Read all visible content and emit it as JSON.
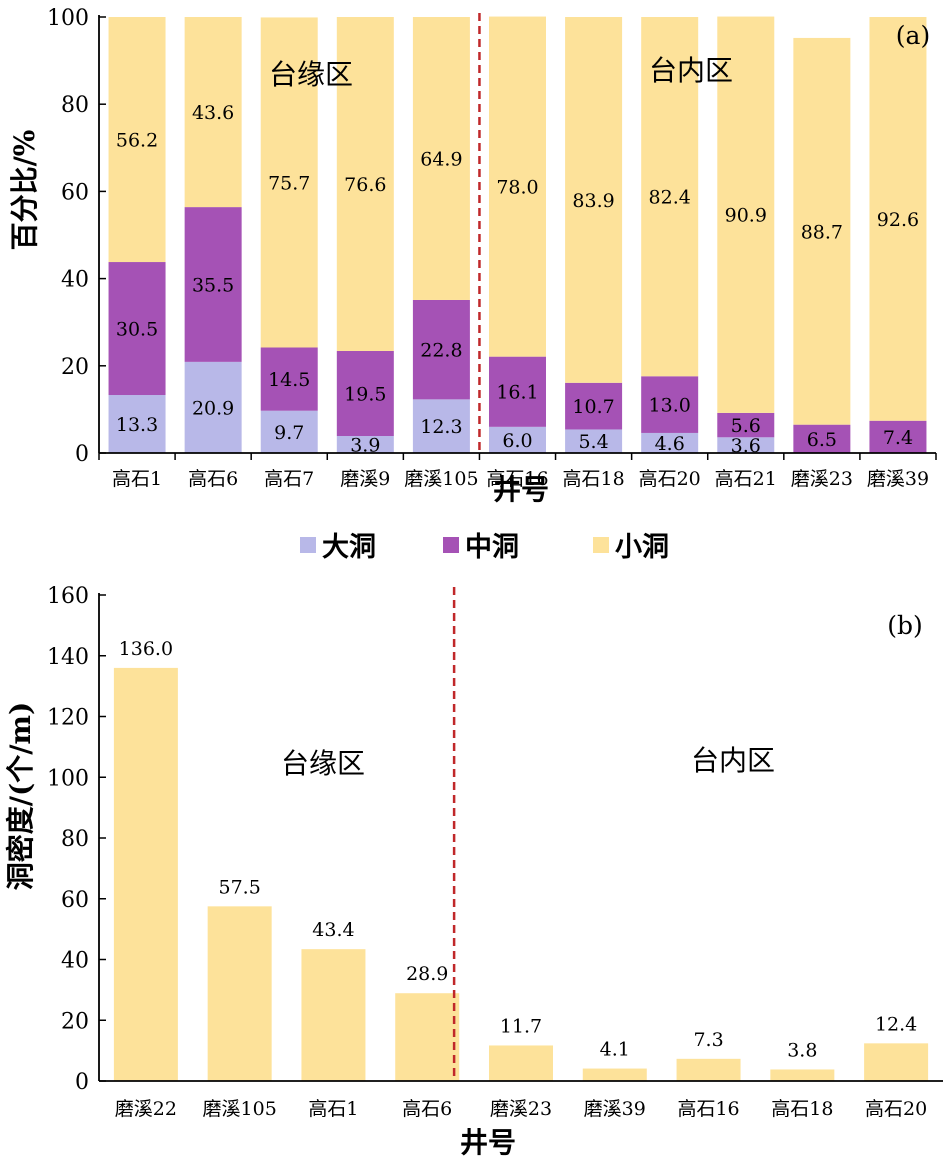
{
  "chart_data": [
    {
      "type": "bar",
      "stacked": true,
      "panel_label": "(a)",
      "categories": [
        "高石1",
        "高石6",
        "高石7",
        "磨溪9",
        "磨溪105",
        "高石16",
        "高石18",
        "高石20",
        "高石21",
        "磨溪23",
        "磨溪39"
      ],
      "series": [
        {
          "name": "大洞",
          "color": "#b8b8e8",
          "values": [
            13.3,
            20.9,
            9.7,
            3.9,
            12.3,
            6.0,
            5.4,
            4.6,
            3.6,
            null,
            null
          ]
        },
        {
          "name": "中洞",
          "color": "#a552b5",
          "values": [
            30.5,
            35.5,
            14.5,
            19.5,
            22.8,
            16.1,
            10.7,
            13.0,
            5.6,
            6.5,
            7.4
          ]
        },
        {
          "name": "小洞",
          "color": "#fde29a",
          "values": [
            56.2,
            43.6,
            75.7,
            76.6,
            64.9,
            78.0,
            83.9,
            82.4,
            90.9,
            88.7,
            92.6
          ]
        }
      ],
      "bar_display_values": {
        "大洞": [
          "13.3",
          "20.9",
          "9.7",
          "3.9",
          "12.3",
          "6.0",
          "5.4",
          "4.6",
          "3.6",
          "",
          ""
        ],
        "中洞": [
          "30.5",
          "35.5",
          "14.5",
          "19.5",
          "22.8",
          "16.1",
          "10.7",
          "13.0",
          "5.6",
          "6.5",
          "7.4"
        ],
        "小洞": [
          "56.2",
          "43.6",
          "75.7",
          "76.6",
          "64.9",
          "78.0",
          "83.9",
          "82.4",
          "90.9",
          "88.7",
          "92.6"
        ]
      },
      "ylabel": "百分比/%",
      "xlabel": "井号",
      "ylim": [
        0,
        100
      ],
      "yticks": [
        0,
        20,
        40,
        60,
        80,
        100
      ],
      "divider_after_index": 4,
      "zones": [
        "台缘区",
        "台内区"
      ],
      "legend": {
        "placement": "bottom",
        "entries": [
          "大洞",
          "中洞",
          "小洞"
        ]
      }
    },
    {
      "type": "bar",
      "panel_label": "(b)",
      "categories": [
        "磨溪22",
        "磨溪105",
        "高石1",
        "高石6",
        "磨溪23",
        "磨溪39",
        "高石16",
        "高石18",
        "高石20"
      ],
      "values": [
        136.0,
        57.5,
        43.4,
        28.9,
        11.7,
        4.1,
        7.3,
        3.8,
        12.4
      ],
      "value_labels": [
        "136.0",
        "57.5",
        "43.4",
        "28.9",
        "11.7",
        "4.1",
        "7.3",
        "3.8",
        "12.4"
      ],
      "color": "#fde29a",
      "ylabel": "洞密度/(个/m)",
      "xlabel": "井号",
      "ylim": [
        0,
        160
      ],
      "yticks": [
        0,
        20,
        40,
        60,
        80,
        100,
        120,
        140,
        160
      ],
      "divider_after_index": 3,
      "zones": [
        "台缘区",
        "台内区"
      ]
    }
  ]
}
